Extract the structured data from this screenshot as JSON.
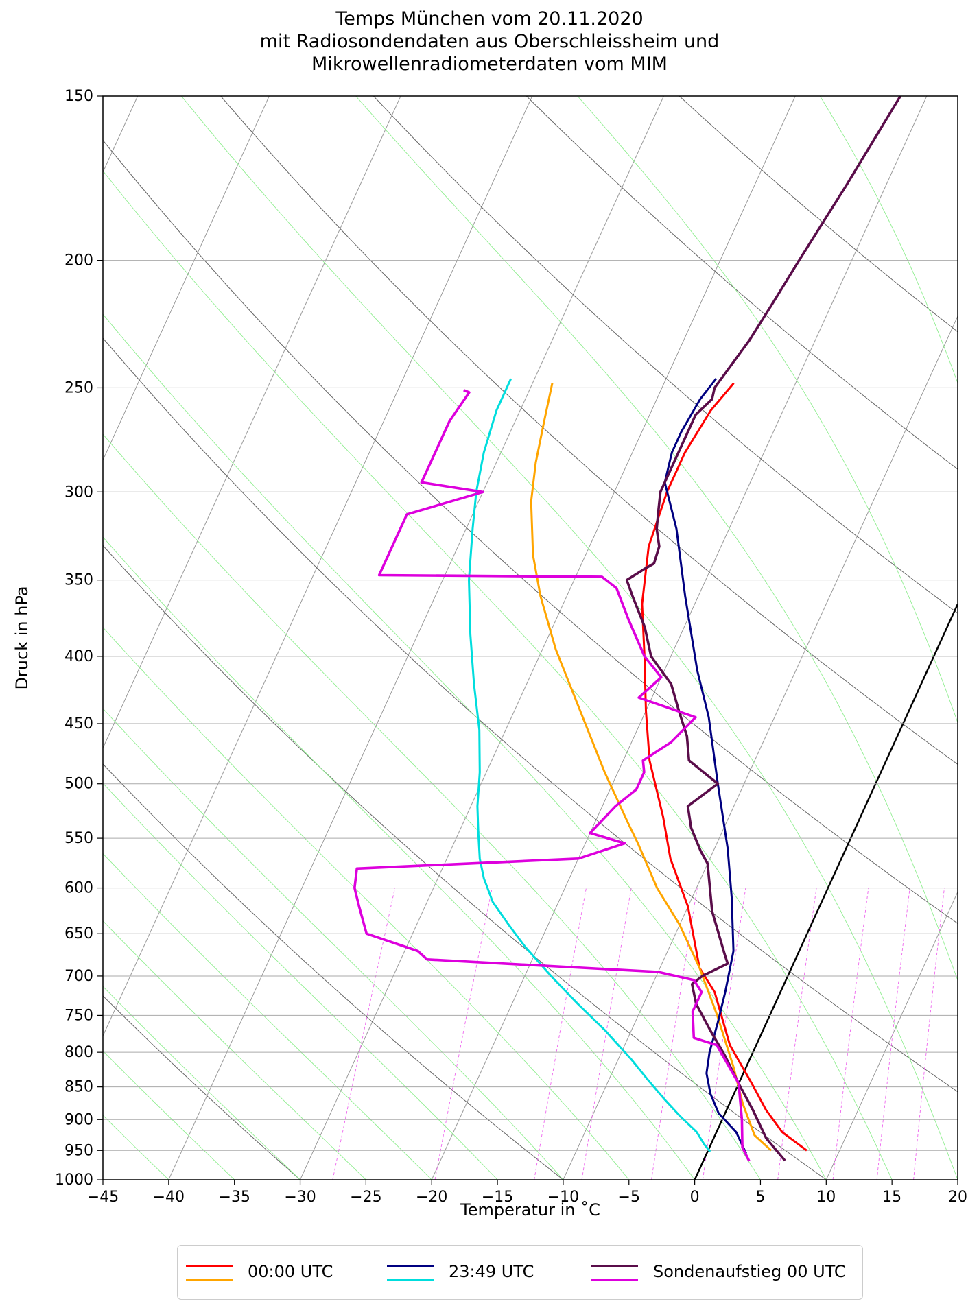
{
  "chart_data": {
    "type": "line",
    "title": [
      "Temps München vom 20.11.2020",
      "mit Radiosondendaten aus Oberschleissheim und",
      "Mikrowellenradiometerdaten vom MIM"
    ],
    "xlabel": "Temperatur in $^\\circ$C",
    "xlabel_display": "Temperatur in ˚C",
    "ylabel": "Druck in hPa",
    "xlim": [
      -45,
      20
    ],
    "ylim": [
      1000,
      150
    ],
    "y_scale": "log",
    "x_ticks": [
      -45,
      -40,
      -35,
      -30,
      -25,
      -20,
      -15,
      -10,
      -5,
      0,
      5,
      10,
      15,
      20
    ],
    "x_tick_labels": [
      "−45",
      "−40",
      "−35",
      "−30",
      "−25",
      "−20",
      "−15",
      "−10",
      "−5",
      "0",
      "5",
      "10",
      "15",
      "20"
    ],
    "y_ticks": [
      150,
      200,
      250,
      300,
      350,
      400,
      450,
      500,
      550,
      600,
      650,
      700,
      750,
      800,
      850,
      900,
      950,
      1000
    ],
    "y_tick_labels": [
      "150",
      "200",
      "250",
      "300",
      "350",
      "400",
      "450",
      "500",
      "550",
      "600",
      "650",
      "700",
      "750",
      "800",
      "850",
      "900",
      "950",
      "1000"
    ],
    "grid": true,
    "legend_placement": "below-center",
    "skewt_isotherm_0C": [
      [
        0,
        1000
      ],
      [
        20,
        365
      ]
    ],
    "series": [
      {
        "name": "00:00 UTC",
        "kind": "temperature",
        "color": "#ff0000",
        "points": [
          [
            7.5,
            950
          ],
          [
            5,
            920
          ],
          [
            3,
            885
          ],
          [
            1,
            845
          ],
          [
            -2,
            790
          ],
          [
            -5,
            720
          ],
          [
            -7,
            690
          ],
          [
            -10,
            620
          ],
          [
            -13,
            570
          ],
          [
            -15,
            530
          ],
          [
            -18,
            480
          ],
          [
            -20,
            440
          ],
          [
            -22,
            400
          ],
          [
            -24,
            365
          ],
          [
            -25.5,
            330
          ],
          [
            -26,
            300
          ],
          [
            -26,
            280
          ],
          [
            -25.5,
            260
          ],
          [
            -24.7,
            248
          ]
        ]
      },
      {
        "name": "00:00 UTC",
        "kind": "dewpoint",
        "color": "#ffa500",
        "points": [
          [
            4.8,
            950
          ],
          [
            3,
            925
          ],
          [
            1,
            875
          ],
          [
            -1,
            820
          ],
          [
            -4,
            750
          ],
          [
            -7,
            690
          ],
          [
            -10,
            640
          ],
          [
            -13,
            600
          ],
          [
            -16,
            555
          ],
          [
            -17.5,
            535
          ],
          [
            -21,
            490
          ],
          [
            -25,
            440
          ],
          [
            -29,
            395
          ],
          [
            -32,
            360
          ],
          [
            -34,
            335
          ],
          [
            -36,
            305
          ],
          [
            -37,
            285
          ],
          [
            -37.8,
            265
          ],
          [
            -38.5,
            248
          ]
        ]
      },
      {
        "name": "23:49 UTC",
        "kind": "temperature",
        "color": "#000080",
        "points": [
          [
            3,
            955
          ],
          [
            1.5,
            920
          ],
          [
            -0.5,
            890
          ],
          [
            -1.8,
            860
          ],
          [
            -2.8,
            830
          ],
          [
            -3.3,
            800
          ],
          [
            -3.7,
            760
          ],
          [
            -4.2,
            720
          ],
          [
            -5,
            670
          ],
          [
            -7,
            610
          ],
          [
            -9,
            560
          ],
          [
            -12,
            500
          ],
          [
            -15,
            445
          ],
          [
            -17.5,
            410
          ],
          [
            -21,
            360
          ],
          [
            -24,
            320
          ],
          [
            -26.5,
            295
          ],
          [
            -27,
            280
          ],
          [
            -27,
            270
          ],
          [
            -26.7,
            255
          ],
          [
            -26.2,
            246
          ]
        ]
      },
      {
        "name": "23:49 UTC",
        "kind": "dewpoint",
        "color": "#00dddd",
        "points": [
          [
            0.2,
            952
          ],
          [
            -0.5,
            940
          ],
          [
            -1.5,
            920
          ],
          [
            -3.3,
            895
          ],
          [
            -5,
            870
          ],
          [
            -7,
            840
          ],
          [
            -9,
            810
          ],
          [
            -12,
            770
          ],
          [
            -15,
            735
          ],
          [
            -18,
            700
          ],
          [
            -21,
            665
          ],
          [
            -23,
            640
          ],
          [
            -25,
            615
          ],
          [
            -26.5,
            590
          ],
          [
            -27.5,
            570
          ],
          [
            -28.5,
            545
          ],
          [
            -29.5,
            520
          ],
          [
            -30.5,
            490
          ],
          [
            -32,
            455
          ],
          [
            -34,
            420
          ],
          [
            -36,
            385
          ],
          [
            -38,
            350
          ],
          [
            -39.5,
            320
          ],
          [
            -40.5,
            300
          ],
          [
            -41.3,
            280
          ],
          [
            -41.8,
            260
          ],
          [
            -41.8,
            246
          ]
        ]
      },
      {
        "name": "Sondenaufstieg 00 UTC",
        "kind": "temperature",
        "color": "#5a0d4a",
        "points": [
          [
            6.2,
            967
          ],
          [
            4,
            930
          ],
          [
            2,
            885
          ],
          [
            0,
            845
          ],
          [
            -2,
            805
          ],
          [
            -4,
            770
          ],
          [
            -6,
            735
          ],
          [
            -7,
            710
          ],
          [
            -6.5,
            700
          ],
          [
            -5,
            685
          ],
          [
            -5.5,
            675
          ],
          [
            -8,
            625
          ],
          [
            -10,
            575
          ],
          [
            -11,
            562
          ],
          [
            -12.5,
            540
          ],
          [
            -13.5,
            520
          ],
          [
            -12,
            500
          ],
          [
            -15,
            480
          ],
          [
            -16,
            460
          ],
          [
            -17.5,
            440
          ],
          [
            -19,
            420
          ],
          [
            -21.5,
            400
          ],
          [
            -23,
            380
          ],
          [
            -25,
            360
          ],
          [
            -26,
            350
          ],
          [
            -25,
            343
          ],
          [
            -24.5,
            340
          ],
          [
            -24.7,
            330
          ],
          [
            -25.5,
            320
          ],
          [
            -26,
            310
          ],
          [
            -26.5,
            300
          ],
          [
            -26.5,
            285
          ],
          [
            -26.5,
            262
          ],
          [
            -25.8,
            255
          ],
          [
            -26,
            250
          ],
          [
            -25,
            230
          ],
          [
            -24.5,
            215
          ],
          [
            -24,
            200
          ],
          [
            -23,
            175
          ],
          [
            -22,
            150
          ]
        ]
      },
      {
        "name": "Sondenaufstieg 00 UTC",
        "kind": "dewpoint",
        "color": "#dd00dd",
        "points": [
          [
            3.5,
            968
          ],
          [
            2.5,
            945
          ],
          [
            1.5,
            900
          ],
          [
            0,
            845
          ],
          [
            -3,
            790
          ],
          [
            -5,
            780
          ],
          [
            -6,
            745
          ],
          [
            -6,
            720
          ],
          [
            -7,
            705
          ],
          [
            -10,
            695
          ],
          [
            -28,
            680
          ],
          [
            -29,
            670
          ],
          [
            -33.5,
            650
          ],
          [
            -35,
            620
          ],
          [
            -36,
            600
          ],
          [
            -36.5,
            580
          ],
          [
            -20,
            570
          ],
          [
            -17,
            555
          ],
          [
            -20,
            545
          ],
          [
            -19,
            520
          ],
          [
            -18,
            505
          ],
          [
            -18,
            490
          ],
          [
            -18.5,
            480
          ],
          [
            -17,
            465
          ],
          [
            -16,
            445
          ],
          [
            -21,
            430
          ],
          [
            -20,
            415
          ],
          [
            -22,
            400
          ],
          [
            -24.5,
            375
          ],
          [
            -26.5,
            355
          ],
          [
            -28,
            348
          ],
          [
            -45,
            347
          ],
          [
            -45,
            312
          ],
          [
            -40,
            300
          ],
          [
            -45,
            295
          ],
          [
            -45,
            265
          ],
          [
            -44.5,
            252
          ],
          [
            -45,
            251
          ]
        ]
      }
    ]
  },
  "legend": {
    "entries": [
      {
        "label": "00:00 UTC",
        "colors": [
          "#ff0000",
          "#ffa500"
        ]
      },
      {
        "label": "23:49 UTC",
        "colors": [
          "#000080",
          "#00dddd"
        ]
      },
      {
        "label": "Sondenaufstieg 00 UTC",
        "colors": [
          "#5a0d4a",
          "#dd00dd"
        ]
      }
    ]
  },
  "colors": {
    "isobar_grid": "#aaaaaa",
    "skewed_isotherms": "#999999",
    "dry_adiabats": "#666666",
    "moist_adiabats": "#90ee90",
    "mixing_ratio": "#ee66ee",
    "zero_isotherm": "#000000"
  }
}
